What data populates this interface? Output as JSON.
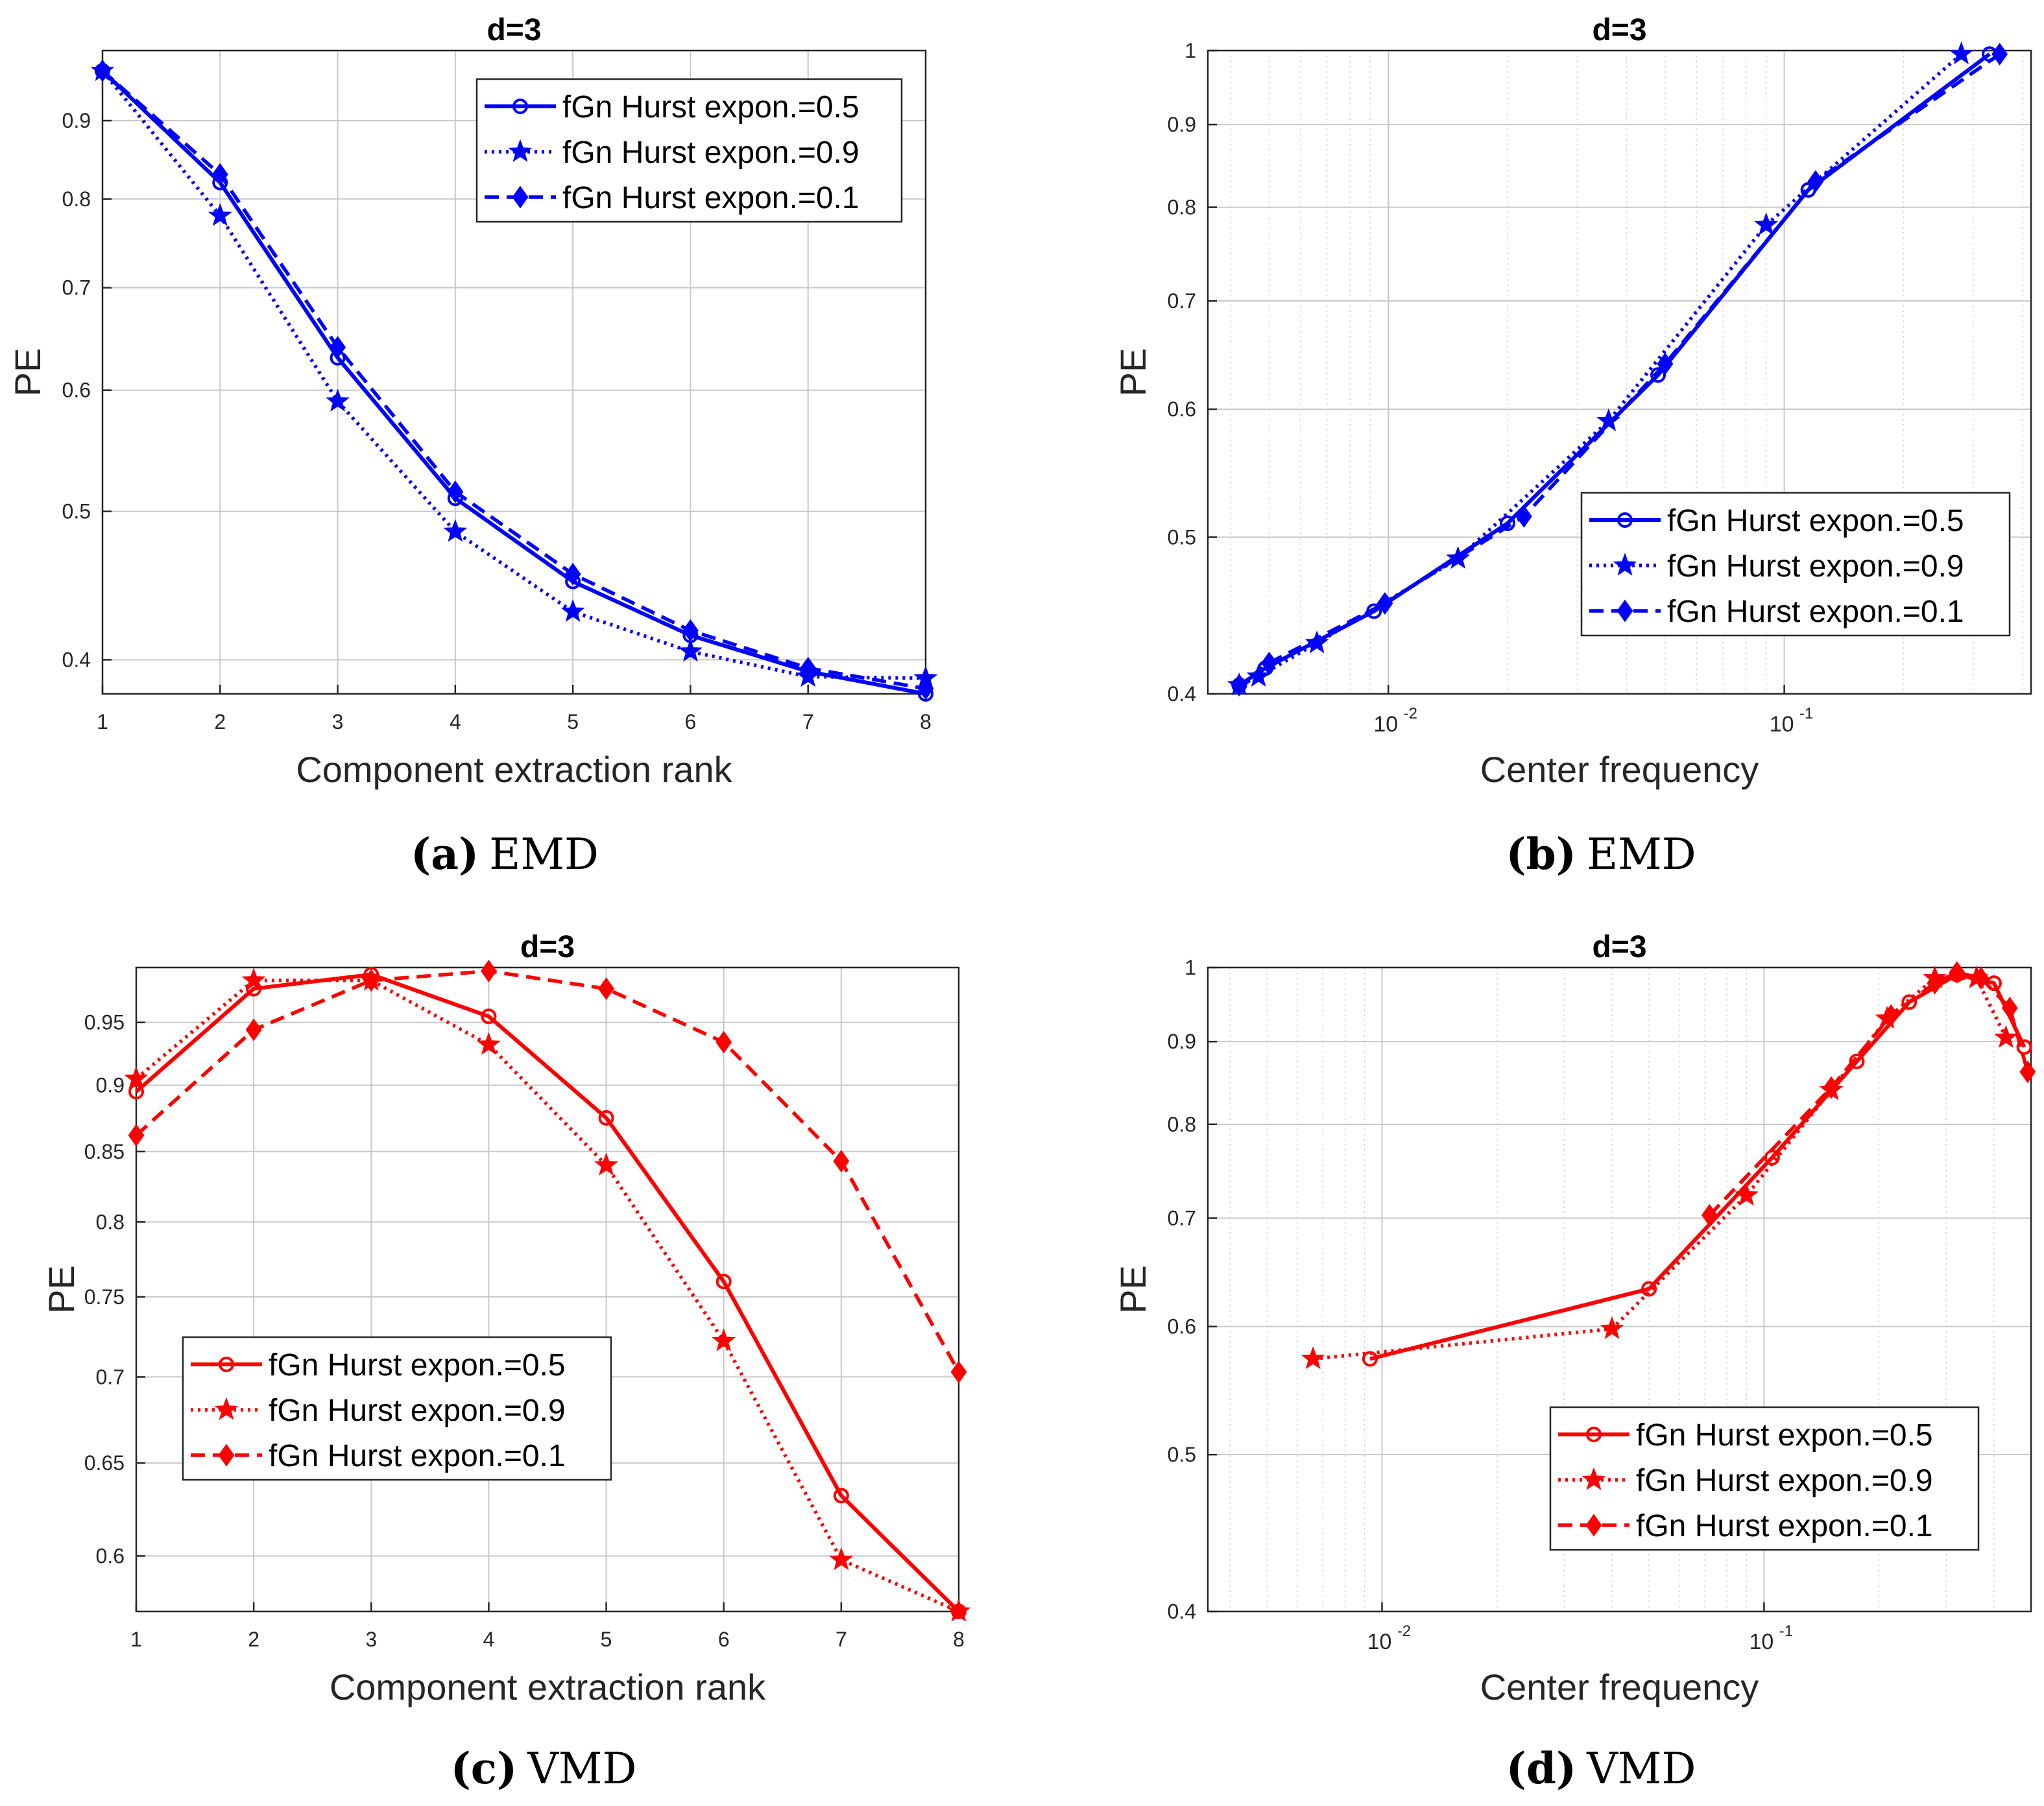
{
  "panels": [
    {
      "caption_label": "(a)",
      "caption_text": "EMD",
      "chart_data": {
        "type": "line",
        "title": "d=3",
        "xlabel": "Component extraction rank",
        "ylabel": "PE",
        "xscale": "linear",
        "yscale": "log",
        "xlim": [
          1,
          8
        ],
        "ylim": [
          0.38,
          1.0
        ],
        "xticks": [
          1,
          2,
          3,
          4,
          5,
          6,
          7,
          8
        ],
        "xtick_labels": [
          "1",
          "2",
          "3",
          "4",
          "5",
          "6",
          "7",
          "8"
        ],
        "yticks": [
          0.4,
          0.5,
          0.6,
          0.7,
          0.8,
          0.9
        ],
        "ytick_labels": [
          "0.4",
          "0.5",
          "0.6",
          "0.7",
          "0.8",
          "0.9"
        ],
        "grid": true,
        "legend_position": "top-right",
        "color": "#0000ff",
        "series": [
          {
            "name": "fGn Hurst expon.=0.5",
            "marker": "circle",
            "line": "solid",
            "x": [
              1,
              2,
              3,
              4,
              5,
              6,
              7,
              8
            ],
            "y": [
              0.97,
              0.82,
              0.63,
              0.51,
              0.45,
              0.415,
              0.393,
              0.38
            ]
          },
          {
            "name": "fGn Hurst expon.=0.9",
            "marker": "star",
            "line": "dotted",
            "x": [
              1,
              2,
              3,
              4,
              5,
              6,
              7,
              8
            ],
            "y": [
              0.97,
              0.78,
              0.59,
              0.485,
              0.43,
              0.405,
              0.39,
              0.389
            ]
          },
          {
            "name": "fGn Hurst expon.=0.1",
            "marker": "diamond",
            "line": "dashed",
            "x": [
              1,
              2,
              3,
              4,
              5,
              6,
              7,
              8
            ],
            "y": [
              0.97,
              0.83,
              0.64,
              0.515,
              0.455,
              0.418,
              0.395,
              0.383
            ]
          }
        ]
      }
    },
    {
      "caption_label": "(b)",
      "caption_text": "EMD",
      "chart_data": {
        "type": "line",
        "title": "d=3",
        "xlabel": "Center  frequency",
        "ylabel": "PE",
        "xscale": "log",
        "yscale": "log",
        "xlim": [
          0.0035,
          0.42
        ],
        "ylim": [
          0.4,
          1.0
        ],
        "xticks": [
          0.01,
          0.1
        ],
        "xtick_labels": [
          "10",
          "10"
        ],
        "xtick_exponents": [
          "-2",
          "-1"
        ],
        "yticks": [
          0.4,
          0.5,
          0.6,
          0.7,
          0.8,
          0.9,
          1.0
        ],
        "ytick_labels": [
          "0.4",
          "0.5",
          "0.6",
          "0.7",
          "0.8",
          "0.9",
          "1"
        ],
        "grid": true,
        "legend_position": "bottom-right",
        "color": "#0000ff",
        "series": [
          {
            "name": "fGn Hurst expon.=0.5",
            "marker": "circle",
            "line": "solid",
            "x": [
              0.33,
              0.115,
              0.048,
              0.02,
              0.0092,
              0.0049,
              0.0042
            ],
            "y": [
              0.995,
              0.82,
              0.63,
              0.51,
              0.45,
              0.415,
              0.405
            ]
          },
          {
            "name": "fGn Hurst expon.=0.9",
            "marker": "star",
            "line": "dotted",
            "x": [
              0.28,
              0.09,
              0.036,
              0.015,
              0.0066,
              0.0047,
              0.0042
            ],
            "y": [
              0.995,
              0.78,
              0.59,
              0.485,
              0.43,
              0.41,
              0.405
            ]
          },
          {
            "name": "fGn Hurst expon.=0.1",
            "marker": "diamond",
            "line": "dashed",
            "x": [
              0.35,
              0.12,
              0.05,
              0.022,
              0.0098,
              0.005,
              0.0042
            ],
            "y": [
              0.995,
              0.83,
              0.64,
              0.515,
              0.455,
              0.418,
              0.405
            ]
          }
        ]
      }
    },
    {
      "caption_label": "(c)",
      "caption_text": "VMD",
      "chart_data": {
        "type": "line",
        "title": "d=3",
        "xlabel": "Component extraction rank",
        "ylabel": "PE",
        "xscale": "linear",
        "yscale": "log",
        "xlim": [
          1,
          8
        ],
        "ylim": [
          0.572,
          0.996
        ],
        "xticks": [
          1,
          2,
          3,
          4,
          5,
          6,
          7,
          8
        ],
        "xtick_labels": [
          "1",
          "2",
          "3",
          "4",
          "5",
          "6",
          "7",
          "8"
        ],
        "yticks": [
          0.6,
          0.65,
          0.7,
          0.75,
          0.8,
          0.85,
          0.9,
          0.95
        ],
        "ytick_labels": [
          "0.6",
          "0.65",
          "0.7",
          "0.75",
          "0.8",
          "0.85",
          "0.9",
          "0.95"
        ],
        "grid": true,
        "legend_position": "bottom-left",
        "color": "#ff0000",
        "series": [
          {
            "name": "fGn Hurst expon.=0.5",
            "marker": "circle",
            "line": "solid",
            "x": [
              1,
              2,
              3,
              4,
              5,
              6,
              7,
              8
            ],
            "y": [
              0.895,
              0.978,
              0.99,
              0.955,
              0.875,
              0.76,
              0.632,
              0.572
            ]
          },
          {
            "name": "fGn Hurst expon.=0.9",
            "marker": "star",
            "line": "dotted",
            "x": [
              1,
              2,
              3,
              4,
              5,
              6,
              7,
              8
            ],
            "y": [
              0.905,
              0.985,
              0.985,
              0.932,
              0.84,
              0.722,
              0.598,
              0.572
            ]
          },
          {
            "name": "fGn Hurst expon.=0.1",
            "marker": "diamond",
            "line": "dashed",
            "x": [
              1,
              2,
              3,
              4,
              5,
              6,
              7,
              8
            ],
            "y": [
              0.862,
              0.944,
              0.985,
              0.993,
              0.978,
              0.934,
              0.843,
              0.703
            ]
          }
        ]
      }
    },
    {
      "caption_label": "(d)",
      "caption_text": "VMD",
      "chart_data": {
        "type": "line",
        "title": "d=3",
        "xlabel": "Center  frequency",
        "ylabel": "PE",
        "xscale": "log",
        "yscale": "log",
        "xlim": [
          0.0035,
          0.5
        ],
        "ylim": [
          0.4,
          1.0
        ],
        "xticks": [
          0.01,
          0.1
        ],
        "xtick_labels": [
          "10",
          "10"
        ],
        "xtick_exponents": [
          "-2",
          "-1"
        ],
        "yticks": [
          0.4,
          0.5,
          0.6,
          0.7,
          0.8,
          0.9,
          1.0
        ],
        "ytick_labels": [
          "0.4",
          "0.5",
          "0.6",
          "0.7",
          "0.8",
          "0.9",
          "1"
        ],
        "grid": true,
        "legend_position": "bottom-right",
        "color": "#ff0000",
        "series": [
          {
            "name": "fGn Hurst expon.=0.5",
            "marker": "circle",
            "line": "solid",
            "x": [
              0.0093,
              0.05,
              0.105,
              0.175,
              0.24,
              0.32,
              0.4,
              0.48
            ],
            "y": [
              0.573,
              0.633,
              0.763,
              0.875,
              0.952,
              0.99,
              0.978,
              0.893
            ]
          },
          {
            "name": "fGn Hurst expon.=0.9",
            "marker": "star",
            "line": "dotted",
            "x": [
              0.0066,
              0.04,
              0.09,
              0.15,
              0.21,
              0.28,
              0.36,
              0.43
            ],
            "y": [
              0.573,
              0.598,
              0.723,
              0.84,
              0.93,
              0.985,
              0.985,
              0.905
            ]
          },
          {
            "name": "fGn Hurst expon.=0.1",
            "marker": "diamond",
            "line": "dashed",
            "x": [
              0.072,
              0.15,
              0.215,
              0.28,
              0.32,
              0.37,
              0.44,
              0.49
            ],
            "y": [
              0.703,
              0.843,
              0.934,
              0.978,
              0.993,
              0.985,
              0.944,
              0.862
            ]
          }
        ]
      }
    }
  ]
}
